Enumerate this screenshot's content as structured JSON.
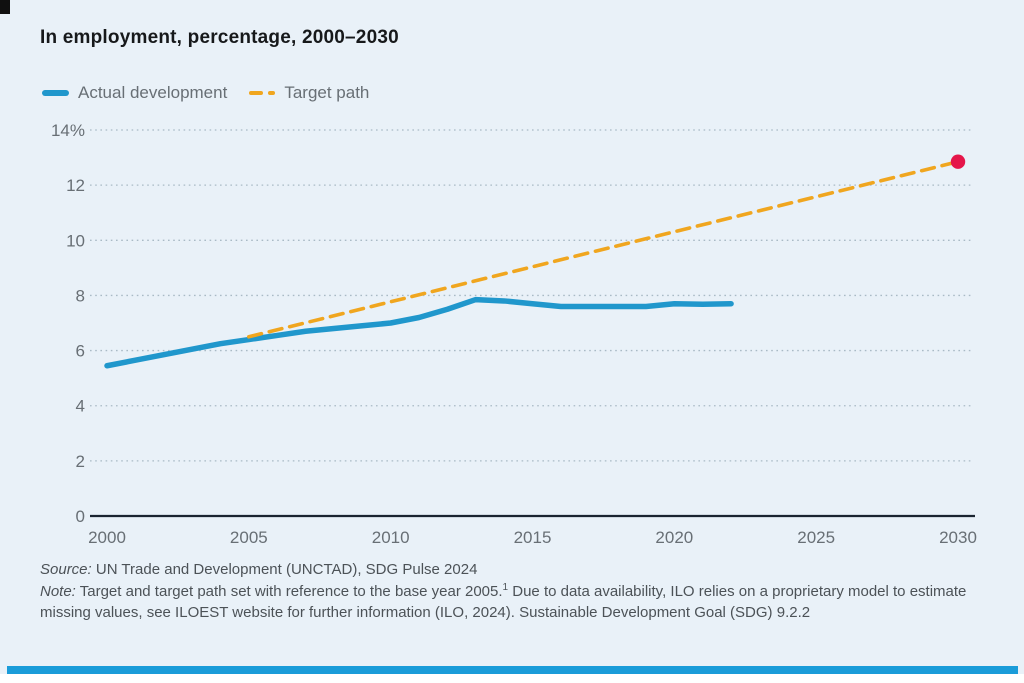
{
  "page": {
    "title": "In employment, percentage, 2000–2030"
  },
  "legend": {
    "actual_label": "Actual development",
    "target_label": "Target path"
  },
  "colors": {
    "background": "#e9f1f8",
    "actual_line": "#2097cc",
    "target_line": "#f0a61f",
    "target_endpoint": "#e5164a",
    "axis_line": "#1a2430",
    "gridline": "#a9bac5",
    "tick_label": "#686f75",
    "title_text": "#17191b",
    "footer_text": "#4c5257",
    "bottom_bar": "#1a9cd9"
  },
  "chart_data": {
    "type": "line",
    "title": "In employment, percentage, 2000–2030",
    "xlabel": "",
    "ylabel": "",
    "xlim": [
      2000,
      2030
    ],
    "ylim": [
      0,
      14
    ],
    "x_tick_labels": [
      "2000",
      "2005",
      "2010",
      "2015",
      "2020",
      "2025",
      "2030"
    ],
    "x_tick_values": [
      2000,
      2005,
      2010,
      2015,
      2020,
      2025,
      2030
    ],
    "y_tick_labels": [
      "14%",
      "12",
      "10",
      "8",
      "6",
      "4",
      "2",
      "0"
    ],
    "y_tick_values": [
      14,
      12,
      10,
      8,
      6,
      4,
      2,
      0
    ],
    "grid": "horizontal-dotted",
    "legend_position": "top-left",
    "series": [
      {
        "name": "Actual development",
        "style": "solid",
        "color": "#2097cc",
        "x": [
          2000,
          2001,
          2002,
          2003,
          2004,
          2005,
          2006,
          2007,
          2008,
          2009,
          2010,
          2011,
          2012,
          2013,
          2014,
          2015,
          2016,
          2017,
          2018,
          2019,
          2020,
          2021,
          2022
        ],
        "y": [
          5.45,
          5.65,
          5.85,
          6.05,
          6.25,
          6.4,
          6.55,
          6.7,
          6.8,
          6.9,
          7.0,
          7.2,
          7.5,
          7.85,
          7.8,
          7.7,
          7.6,
          7.6,
          7.6,
          7.6,
          7.7,
          7.68,
          7.7
        ]
      },
      {
        "name": "Target path",
        "style": "dashed",
        "color": "#f0a61f",
        "x": [
          2005,
          2030
        ],
        "y": [
          6.5,
          12.85
        ],
        "endpoint": {
          "x": 2030,
          "y": 12.85,
          "color": "#e5164a"
        }
      }
    ]
  },
  "footer": {
    "source_label": "Source:",
    "source_text": " UN Trade and Development (UNCTAD), SDG Pulse 2024",
    "note_label": "Note:",
    "note_before_sup": " Target and target path set with reference to the base year 2005.",
    "note_sup": "1",
    "note_after_sup": " Due to data availability, ILO relies on a proprietary model to estimate missing values, see ILOEST website for further information (ILO, 2024). Sustainable Development Goal (SDG) 9.2.2"
  }
}
